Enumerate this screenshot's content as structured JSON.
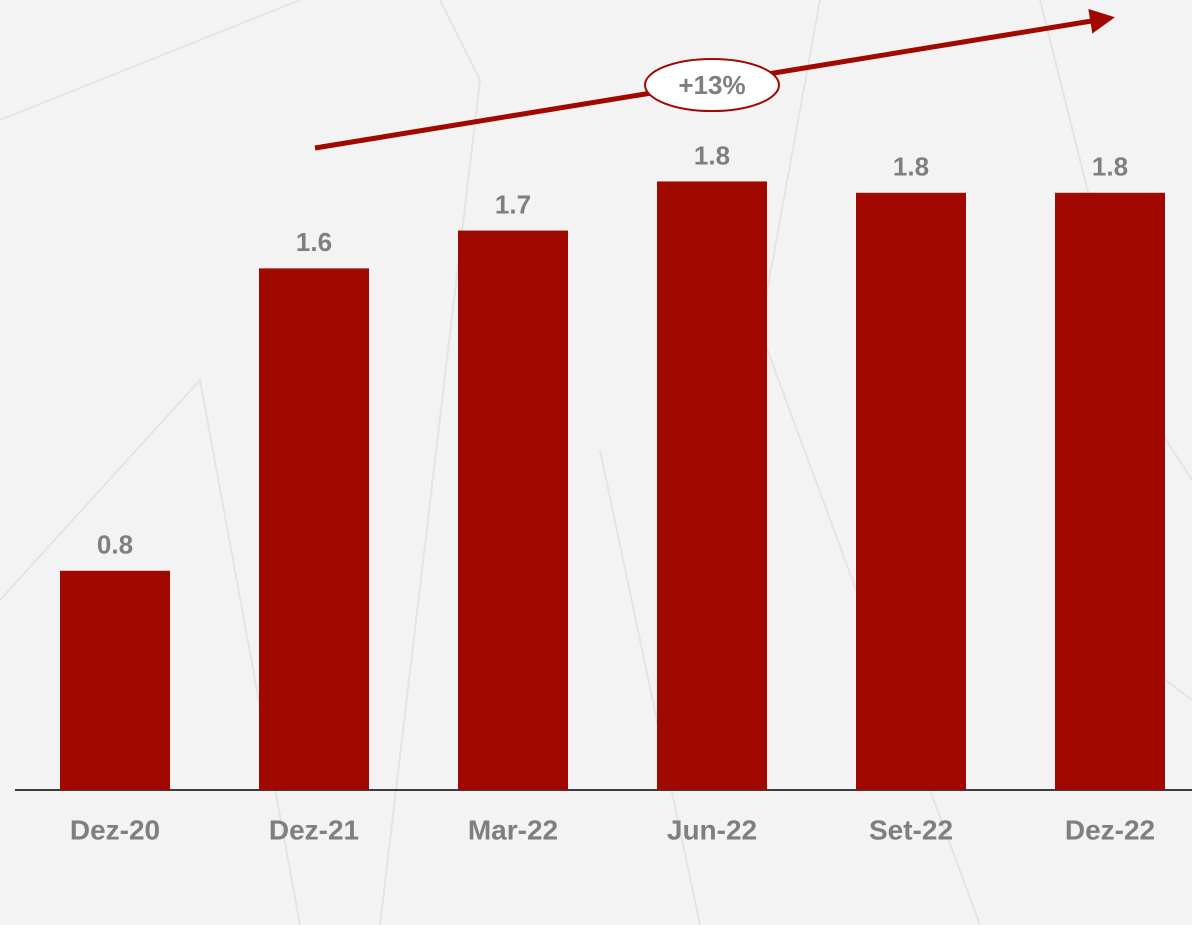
{
  "chart_data": {
    "type": "bar",
    "categories": [
      "Dez-20",
      "Dez-21",
      "Mar-22",
      "Jun-22",
      "Set-22",
      "Dez-22"
    ],
    "values": [
      0.8,
      1.6,
      1.7,
      1.83,
      1.8,
      1.8
    ],
    "value_labels": [
      "0.8",
      "1.6",
      "1.7",
      "1.8",
      "1.8",
      "1.8"
    ],
    "color": "#a00800",
    "ylim": [
      0.22,
      2.31
    ],
    "annotation": "+13%"
  }
}
